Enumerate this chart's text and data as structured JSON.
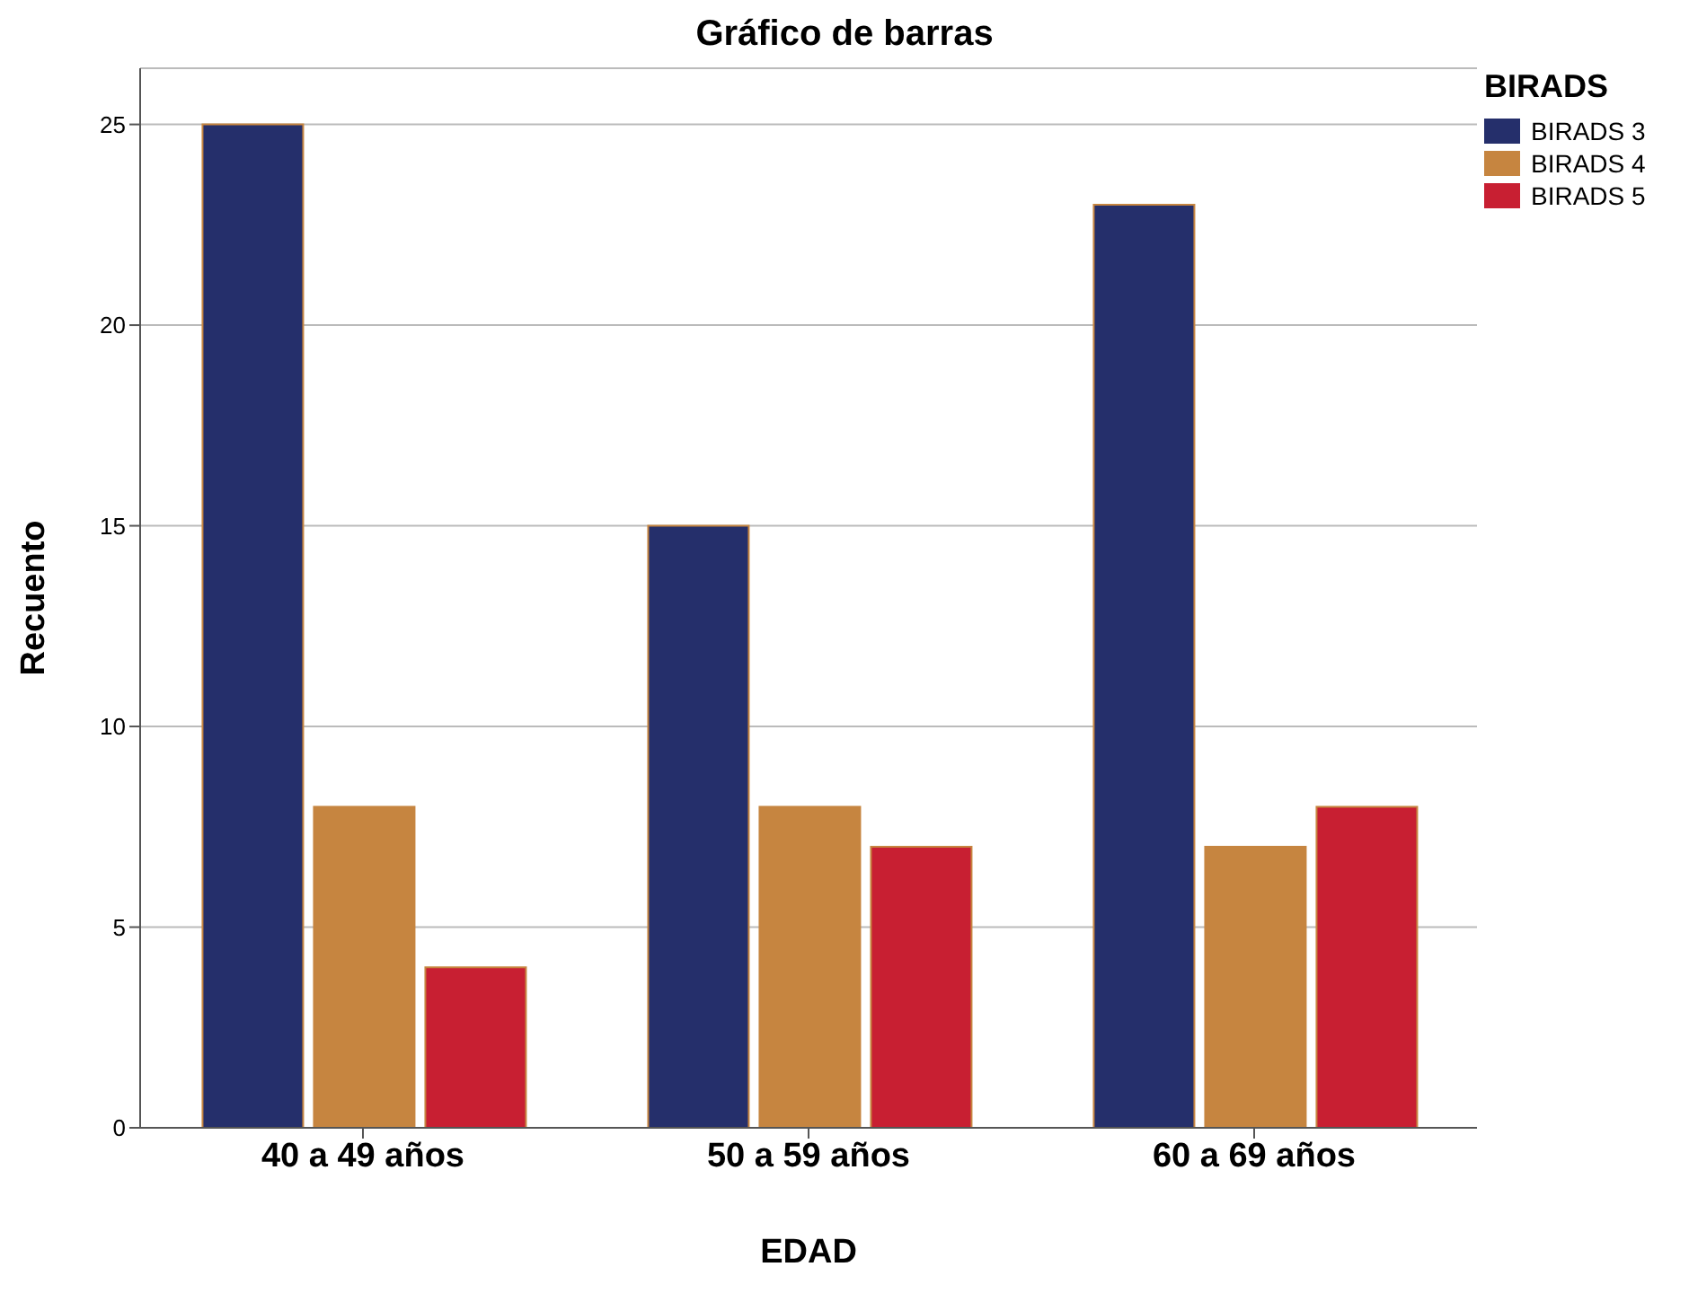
{
  "chart_data": {
    "type": "bar",
    "title": "Gráfico de barras",
    "xlabel": "EDAD",
    "ylabel": "Recuento",
    "legend_title": "BIRADS",
    "categories": [
      "40 a 49 años",
      "50 a 59 años",
      "60 a 69 años"
    ],
    "series": [
      {
        "name": "BIRADS 3",
        "color": "#252f6b",
        "values": [
          25,
          15,
          23
        ]
      },
      {
        "name": "BIRADS 4",
        "color": "#c68540",
        "values": [
          8,
          8,
          7
        ]
      },
      {
        "name": "BIRADS 5",
        "color": "#c81f32",
        "values": [
          4,
          7,
          8
        ]
      }
    ],
    "ylim": [
      0,
      26.4
    ],
    "yticks": [
      0,
      5,
      10,
      15,
      20,
      25
    ],
    "grid": "y",
    "legend": "top right"
  }
}
